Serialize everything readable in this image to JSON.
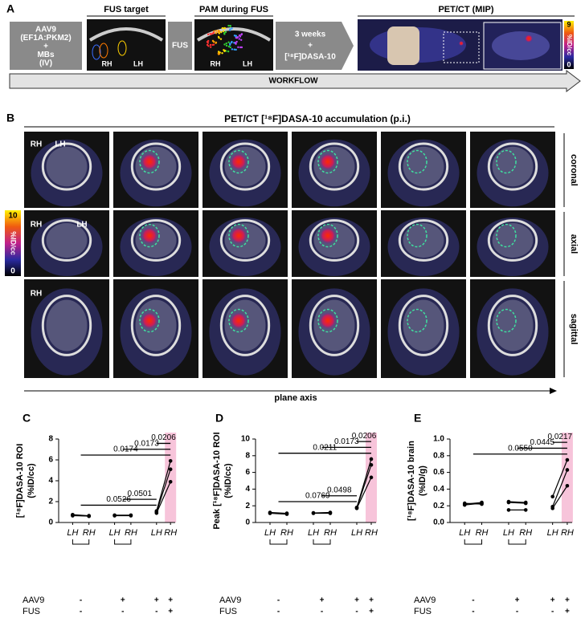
{
  "panel_a": {
    "label": "A",
    "step1": [
      "AAV9",
      "(EF1A:PKM2)",
      "+",
      "MBs",
      "(IV)"
    ],
    "fus_target": "FUS target",
    "rh": "RH",
    "lh": "LH",
    "fus": "FUS",
    "pam": "PAM during FUS",
    "step3": [
      "3 weeks",
      "+",
      "[¹⁸F]DASA-10"
    ],
    "petct": "PET/CT (MIP)",
    "colorbar": {
      "max": "9",
      "unit": "%ID/cc",
      "min": "0"
    },
    "workflow": "WORKFLOW"
  },
  "panel_b": {
    "label": "B",
    "title": "PET/CT [¹⁸F]DASA-10 accumulation (p.i.)",
    "rows": [
      "coronal",
      "axial",
      "sagittal"
    ],
    "rh": "RH",
    "lh": "LH",
    "colorbar": {
      "max": "10",
      "unit": "%ID/cc",
      "min": "0"
    },
    "plane_axis": "plane axis"
  },
  "chart_data": [
    {
      "type": "paired",
      "panel": "C",
      "ylabel": [
        "[¹⁸F]DASA-10 ROI",
        "(%ID/cc)"
      ],
      "ylim": [
        0,
        8
      ],
      "yticks": [
        0,
        2,
        4,
        6,
        8
      ],
      "sides": [
        "LH",
        "RH"
      ],
      "rows": [
        "AAV9",
        "FUS"
      ],
      "highlight_color": "#f7c4da",
      "color": "#000000",
      "groups": [
        {
          "pairs": [
            [
              0.75,
              0.65
            ],
            [
              0.7,
              0.6
            ],
            [
              0.65,
              0.62
            ]
          ],
          "aav9": [
            "-"
          ],
          "fus": [
            "-"
          ]
        },
        {
          "pairs": [
            [
              0.7,
              0.7
            ],
            [
              0.65,
              0.65
            ]
          ],
          "aav9": [
            "+"
          ],
          "fus": [
            "-"
          ]
        },
        {
          "pairs": [
            [
              0.9,
              3.9
            ],
            [
              1.0,
              5.1
            ],
            [
              1.1,
              5.9
            ]
          ],
          "aav9": [
            "+",
            "+"
          ],
          "fus": [
            "-",
            "+"
          ]
        }
      ],
      "comparisons": [
        "0.0526",
        "0.0501",
        "0.0174",
        "0.0173",
        "0.0206"
      ]
    },
    {
      "type": "paired",
      "panel": "D",
      "ylabel": [
        "Peak [¹⁸F]DASA-10 ROI",
        "(%ID/cc)"
      ],
      "ylim": [
        0,
        10
      ],
      "yticks": [
        0,
        2,
        4,
        6,
        8,
        10
      ],
      "sides": [
        "LH",
        "RH"
      ],
      "rows": [
        "AAV9",
        "FUS"
      ],
      "highlight_color": "#f7c4da",
      "color": "#000000",
      "groups": [
        {
          "pairs": [
            [
              1.2,
              1.1
            ],
            [
              1.1,
              1.0
            ]
          ],
          "aav9": [
            "-"
          ],
          "fus": [
            "-"
          ]
        },
        {
          "pairs": [
            [
              1.1,
              1.1
            ],
            [
              1.15,
              1.2
            ]
          ],
          "aav9": [
            "+"
          ],
          "fus": [
            "-"
          ]
        },
        {
          "pairs": [
            [
              1.7,
              5.4
            ],
            [
              1.75,
              6.9
            ],
            [
              1.8,
              7.6
            ]
          ],
          "aav9": [
            "+",
            "+"
          ],
          "fus": [
            "-",
            "+"
          ]
        }
      ],
      "comparisons": [
        "0.0769",
        "0.0498",
        "0.0211",
        "0.0173",
        "0.0206"
      ]
    },
    {
      "type": "paired",
      "panel": "E",
      "ylabel": [
        "[¹⁸F]DASA-10 brain",
        "(%ID/g)"
      ],
      "ylim": [
        0,
        1
      ],
      "yticks": [
        {
          "value": 0,
          "label": "0.0"
        },
        0.2,
        0.4,
        0.6,
        0.8,
        {
          "value": 1,
          "label": "1.0"
        }
      ],
      "sides": [
        "LH",
        "RH"
      ],
      "rows": [
        "AAV9",
        "FUS"
      ],
      "highlight_color": "#f7c4da",
      "color": "#000000",
      "groups": [
        {
          "pairs": [
            [
              0.21,
              0.23
            ],
            [
              0.22,
              0.24
            ],
            [
              0.23,
              0.22
            ]
          ],
          "aav9": [
            "-"
          ],
          "fus": [
            "-"
          ]
        },
        {
          "pairs": [
            [
              0.25,
              0.24
            ],
            [
              0.24,
              0.23
            ],
            [
              0.15,
              0.15
            ]
          ],
          "aav9": [
            "+"
          ],
          "fus": [
            "-"
          ]
        },
        {
          "pairs": [
            [
              0.31,
              0.75
            ],
            [
              0.19,
              0.63
            ],
            [
              0.17,
              0.44
            ]
          ],
          "aav9": [
            "+",
            "+"
          ],
          "fus": [
            "-",
            "+"
          ]
        }
      ],
      "comparisons": [
        "0.0550",
        "0.0445",
        "0.0217"
      ]
    }
  ]
}
